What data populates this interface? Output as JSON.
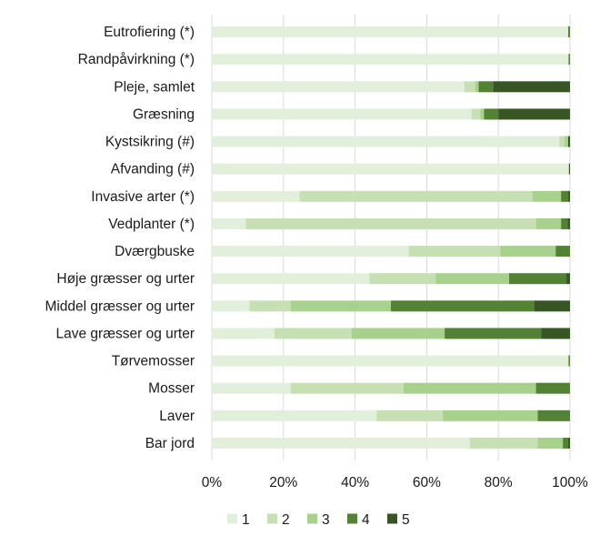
{
  "chart_data": {
    "type": "bar",
    "orientation": "horizontal",
    "stacked": "percent",
    "title": "",
    "xlabel": "",
    "ylabel": "",
    "xlim": [
      0,
      100
    ],
    "x_ticks": [
      "0%",
      "20%",
      "40%",
      "60%",
      "80%",
      "100%"
    ],
    "grid": "vertical",
    "legend_position": "bottom",
    "categories": [
      "Eutrofiering (*)",
      "Randpåvirkning (*)",
      "Pleje, samlet",
      "Græsning",
      "Kystsikring (#)",
      "Afvanding (#)",
      "Invasive arter (*)",
      "Vedplanter (*)",
      "Dværgbuske",
      "Høje græsser og urter",
      "Middel græsser og urter",
      "Lave græsser og urter",
      "Tørvemosser",
      "Mosser",
      "Laver",
      "Bar jord"
    ],
    "series": [
      {
        "name": "1",
        "color": "#e2efda",
        "values": [
          99.5,
          99.6,
          70.5,
          72.5,
          97,
          99.7,
          24.5,
          9.5,
          55,
          44,
          10.5,
          17.5,
          99.6,
          22,
          46,
          72
        ]
      },
      {
        "name": "2",
        "color": "#c6e0b4",
        "values": [
          0,
          0,
          3,
          2.5,
          1.5,
          0,
          65,
          81,
          25.5,
          18.5,
          11.5,
          21.5,
          0,
          31.5,
          18.5,
          19
        ]
      },
      {
        "name": "3",
        "color": "#a9d18e",
        "values": [
          0,
          0,
          1,
          1,
          1,
          0,
          8,
          7,
          15.5,
          20.5,
          28,
          26,
          0,
          37,
          26.5,
          7
        ]
      },
      {
        "name": "4",
        "color": "#548235",
        "values": [
          0.5,
          0.4,
          4,
          4,
          0,
          0,
          2,
          1.8,
          4,
          16,
          40,
          27,
          0.4,
          9.5,
          9,
          1.5
        ]
      },
      {
        "name": "5",
        "color": "#375623",
        "values": [
          0,
          0,
          21.5,
          20,
          0.5,
          0.3,
          0.5,
          0.7,
          0,
          1,
          10,
          8,
          0,
          0,
          0,
          0.5
        ]
      }
    ]
  }
}
